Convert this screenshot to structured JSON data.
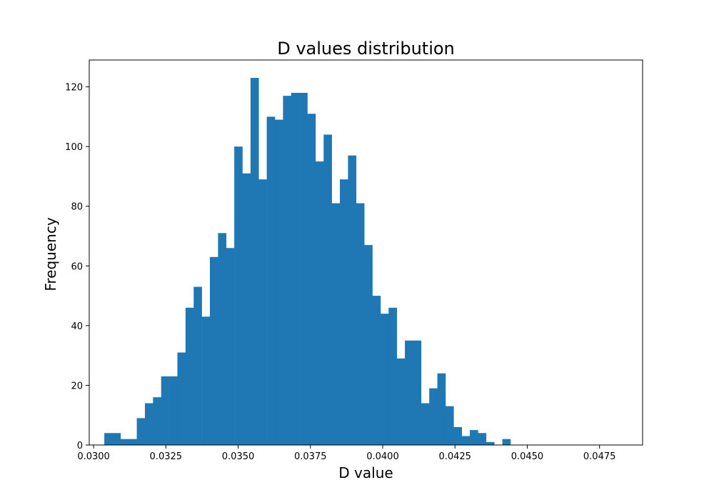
{
  "chart_data": {
    "type": "bar",
    "title": "D values distribution",
    "xlabel": "D value",
    "ylabel": "Frequency",
    "bin_start": 0.03037,
    "bin_width": 0.000281,
    "values": [
      4,
      4,
      2,
      2,
      9,
      14,
      16,
      23,
      23,
      31,
      46,
      53,
      43,
      63,
      71,
      66,
      100,
      91,
      123,
      89,
      110,
      109,
      117,
      118,
      118,
      111,
      95,
      104,
      81,
      89,
      97,
      81,
      67,
      50,
      44,
      46,
      29,
      35,
      35,
      14,
      19,
      24,
      13,
      6,
      3,
      5,
      4,
      1,
      0,
      2
    ],
    "xlim": [
      0.02985,
      0.04899
    ],
    "ylim": [
      0,
      129
    ],
    "xticks": [
      0.03,
      0.0325,
      0.035,
      0.0375,
      0.04,
      0.0425,
      0.045,
      0.0475
    ],
    "xtick_labels": [
      "0.0300",
      "0.0325",
      "0.0350",
      "0.0375",
      "0.0400",
      "0.0425",
      "0.0450",
      "0.0475"
    ],
    "yticks": [
      0,
      20,
      40,
      60,
      80,
      100,
      120
    ],
    "ytick_labels": [
      "0",
      "20",
      "40",
      "60",
      "80",
      "100",
      "120"
    ],
    "bar_color": "#1f77b4",
    "grid": false,
    "legend": "none"
  }
}
